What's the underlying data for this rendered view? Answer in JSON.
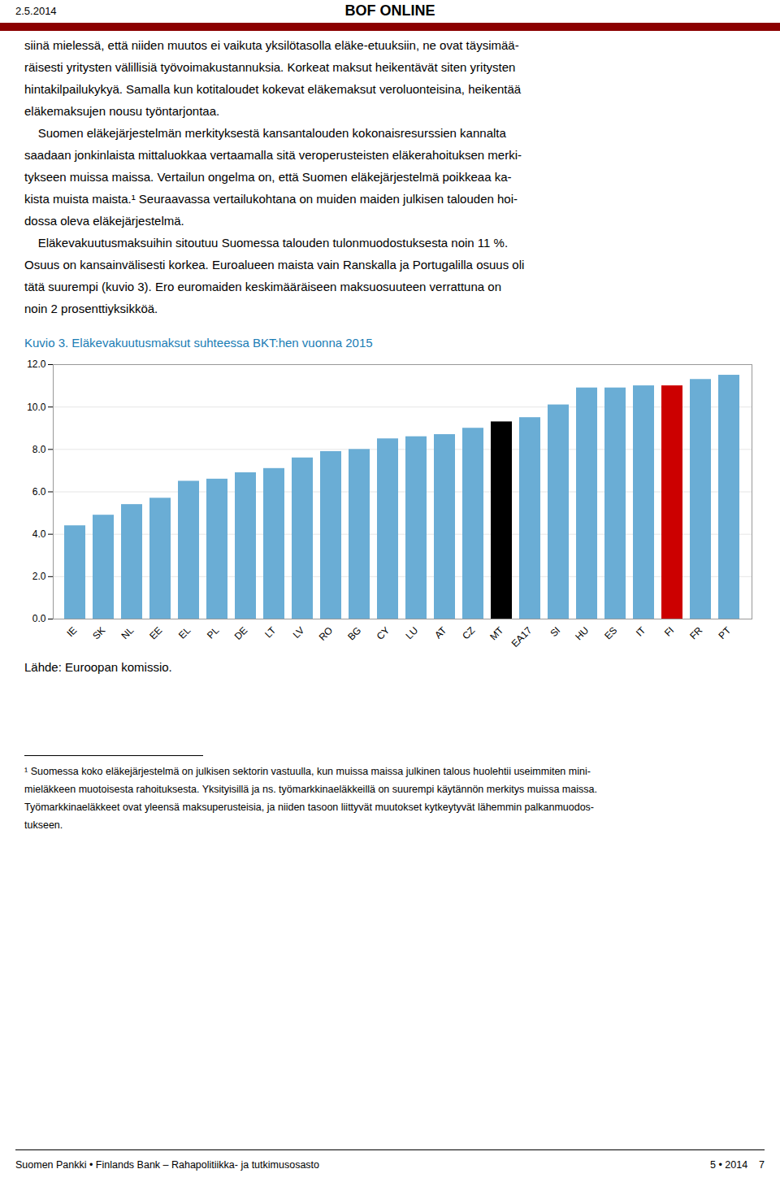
{
  "page_title": "BOF ONLINE",
  "page_date": "2.5.2014",
  "body_text_lines": [
    "siinä mielessä, että niiden muutos ei vaikuta yksilötasolla eläke-etuuksiin, ne ovat täysimää-",
    "räisesti yritysten välillisiä työvoimakustannuksia. Korkeat maksut heikentävät siten yritysten",
    "hintakilpailukykyä. Samalla kun kotitaloudet kokevat eläkemaksut veroluonteisina, heikentää",
    "eläkemaksujen nousu työntarjontaa.",
    "    Suomen eläkejärjestelmän merkityksestä kansantalouden kokonaisresurssien kannalta",
    "saadaan jonkinlaista mittaluokkaa vertaamalla sitä veroperusteisten eläkerahoituksen merki-",
    "tykseen muissa maissa. Vertailun ongelma on, että Suomen eläkejärjestelmä poikkeaa ka-",
    "kista muista maista.¹ Seuraavassa vertailukohtana on muiden maiden julkisen talouden hoi-",
    "dossa oleva eläkejärjestelmä.",
    "    Eläkevakuutusmaksuihin sitoutuu Suomessa talouden tulonmuodostuksesta noin 11 %.",
    "Osuus on kansainvälisesti korkea. Euroalueen maista vain Ranskalla ja Portugalilla osuus oli",
    "tätä suurempi (kuvio 3). Ero euromaiden keskimääräiseen maksuosuuteen verrattuna on",
    "noin 2 prosenttiyksikköä."
  ],
  "source_text": "Lähde: Euroopan komissio.",
  "footnote_lines": [
    "¹ Suomessa koko eläkejärjestelmä on julkisen sektorin vastuulla, kun muissa maissa julkinen talous huolehtii useimmiten mini-",
    "mieläkkeen muotoisesta rahoituksesta. Yksityisillä ja ns. työmarkkinaeläkkeillä on suurempi käytännön merkitys muissa maissa.",
    "Työmarkkinaeläkkeet ovat yleensä maksuperusteisia, ja niiden tasoon liittyvät muutokset kytkeytyvät lähemmin palkanmuodos-",
    "tukseen."
  ],
  "footer_left": "Suomen Pankki • Finlands Bank – Rahapolitiikka- ja tutkimusosasto",
  "footer_right": "5 • 2014    7",
  "chart_data": {
    "type": "bar",
    "title": "Kuvio 3. Eläkevakuutusmaksut suhteessa BKT:hen vuonna 2015",
    "categories": [
      "IE",
      "SK",
      "NL",
      "EE",
      "EL",
      "PL",
      "DE",
      "LT",
      "LV",
      "RO",
      "BG",
      "CY",
      "LU",
      "AT",
      "CZ",
      "MT",
      "EA17",
      "SI",
      "HU",
      "ES",
      "IT",
      "FI",
      "FR",
      "PT"
    ],
    "values": [
      4.4,
      4.9,
      5.4,
      5.7,
      6.5,
      6.6,
      6.9,
      7.1,
      7.6,
      7.9,
      8.0,
      8.5,
      8.6,
      8.7,
      9.0,
      9.3,
      9.5,
      10.1,
      10.9,
      10.9,
      11.0,
      11.0,
      11.3,
      11.5
    ],
    "colors": [
      "#6aadd5",
      "#6aadd5",
      "#6aadd5",
      "#6aadd5",
      "#6aadd5",
      "#6aadd5",
      "#6aadd5",
      "#6aadd5",
      "#6aadd5",
      "#6aadd5",
      "#6aadd5",
      "#6aadd5",
      "#6aadd5",
      "#6aadd5",
      "#6aadd5",
      "#000000",
      "#6aadd5",
      "#6aadd5",
      "#6aadd5",
      "#6aadd5",
      "#6aadd5",
      "#cc0000",
      "#6aadd5",
      "#6aadd5"
    ],
    "ylim": [
      0,
      12.0
    ],
    "yticks": [
      {
        "value": 0,
        "label": "0.0"
      },
      {
        "value": 2,
        "label": "2.0"
      },
      {
        "value": 4,
        "label": "4.0"
      },
      {
        "value": 6,
        "label": "6.0"
      },
      {
        "value": 8,
        "label": "8.0"
      },
      {
        "value": 10,
        "label": "10.0"
      },
      {
        "value": 12,
        "label": "12.0"
      }
    ],
    "grid": true
  }
}
